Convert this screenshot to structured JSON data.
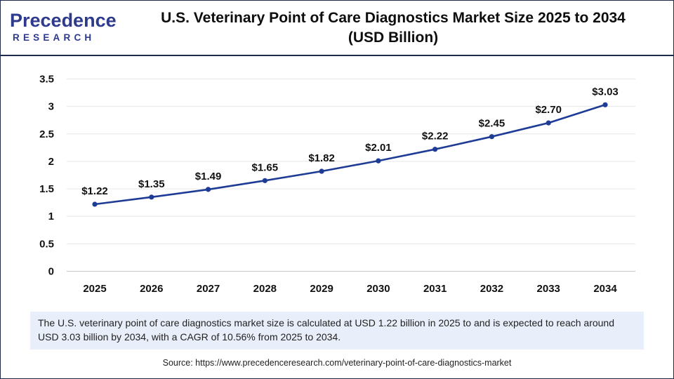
{
  "brand": {
    "logo_word": "Precedence",
    "logo_sub": "RESEARCH",
    "primary_color": "#2e3a8c",
    "accent_color": "#1e3c96"
  },
  "header": {
    "title_line1": "U.S. Veterinary Point of Care Diagnostics Market Size 2025 to 2034",
    "title_line2": "(USD Billion)"
  },
  "chart_data": {
    "type": "line",
    "title": "U.S. Veterinary Point of Care Diagnostics Market Size 2025 to 2034 (USD Billion)",
    "xlabel": "",
    "ylabel": "",
    "categories": [
      "2025",
      "2026",
      "2027",
      "2028",
      "2029",
      "2030",
      "2031",
      "2032",
      "2033",
      "2034"
    ],
    "series": [
      {
        "name": "Market Size (USD Billion)",
        "values": [
          1.22,
          1.35,
          1.49,
          1.65,
          1.82,
          2.01,
          2.22,
          2.45,
          2.7,
          3.03
        ],
        "labels": [
          "$1.22",
          "$1.35",
          "$1.49",
          "$1.65",
          "$1.82",
          "$2.01",
          "$2.22",
          "$2.45",
          "$2.70",
          "$3.03"
        ],
        "color": "#1e3c96"
      }
    ],
    "ylim": [
      0,
      3.5
    ],
    "yticks": [
      "0",
      "0.5",
      "1",
      "1.5",
      "2",
      "2.5",
      "3",
      "3.5"
    ],
    "grid": true,
    "legend": "none"
  },
  "summary": {
    "text": "The U.S. veterinary point of care diagnostics market size is calculated at USD 1.22 billion in 2025 to and is expected to reach around USD 3.03 billion by 2034, with a CAGR of 10.56% from 2025 to 2034."
  },
  "footer": {
    "source": "Source: https://www.precedenceresearch.com/veterinary-point-of-care-diagnostics-market"
  }
}
